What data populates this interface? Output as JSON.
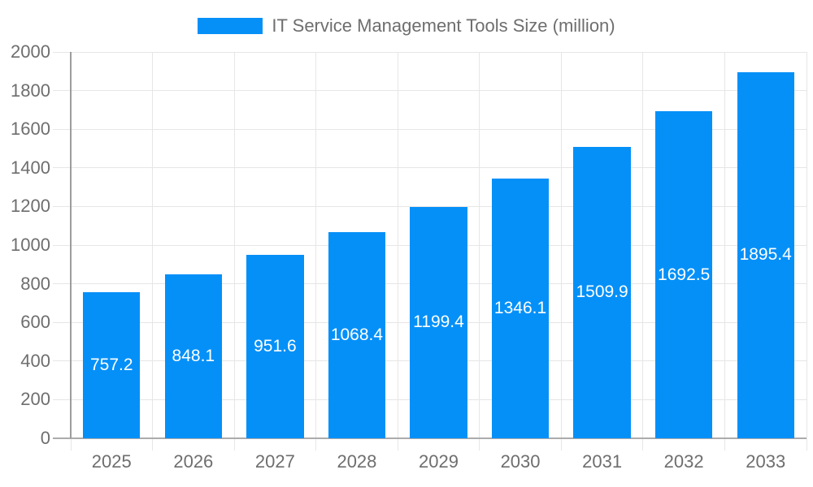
{
  "chart": {
    "colors": {
      "bar": "#0590F8",
      "grid": "#E6E6E6",
      "axis_y": "#9C9C9C",
      "axis_x": "#ABABAB",
      "tick_text": "#6E6E6E",
      "value_label_text": "#FFFFFF",
      "background": "#FFFFFF"
    }
  },
  "chart_data": {
    "type": "bar",
    "title": "IT Service Management Tools Size (million)",
    "series": [
      {
        "name": "IT Service Management Tools Size (million)",
        "values": [
          757.2,
          848.1,
          951.6,
          1068.4,
          1199.4,
          1346.1,
          1509.9,
          1692.5,
          1895.4
        ]
      }
    ],
    "categories": [
      "2025",
      "2026",
      "2027",
      "2028",
      "2029",
      "2030",
      "2031",
      "2032",
      "2033"
    ],
    "xlabel": "",
    "ylabel": "",
    "ylim": [
      0,
      2000
    ],
    "yticks": [
      0,
      200,
      400,
      600,
      800,
      1000,
      1200,
      1400,
      1600,
      1800,
      2000
    ],
    "grid": true,
    "vertical_category_gridlines": true,
    "legend_position": "top-center",
    "value_labels": "inside-center-white"
  }
}
